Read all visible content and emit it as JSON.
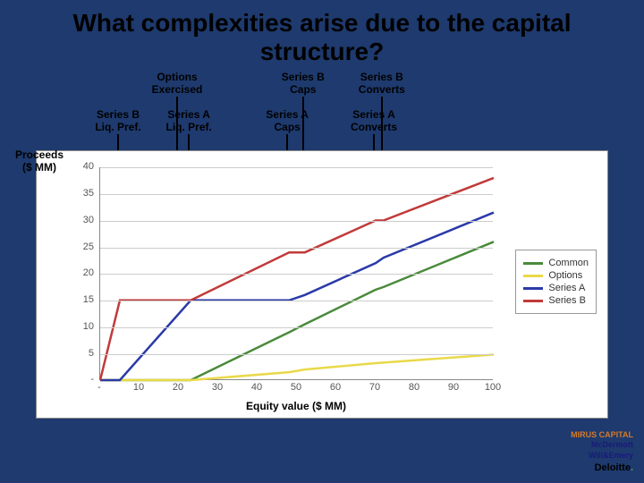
{
  "slide": {
    "background_color": "#1e3a6e",
    "title": "What complexities arise due to the capital structure?",
    "title_color": "#000000",
    "title_fontsize": 28
  },
  "annotations": {
    "fontsize": 12,
    "topRow": [
      {
        "label_l1": "Options",
        "label_l2": "Exercised",
        "x_value": 20
      },
      {
        "label_l1": "Series B",
        "label_l2": "Caps",
        "x_value": 52
      },
      {
        "label_l1": "Series B",
        "label_l2": "Converts",
        "x_value": 72
      }
    ],
    "bottomRow": [
      {
        "label_l1": "Series B",
        "label_l2": "Liq. Pref.",
        "x_value": 5
      },
      {
        "label_l1": "Series A",
        "label_l2": "Liq. Pref.",
        "x_value": 23
      },
      {
        "label_l1": "Series A",
        "label_l2": "Caps",
        "x_value": 48
      },
      {
        "label_l1": "Series A",
        "label_l2": "Converts",
        "x_value": 70
      }
    ]
  },
  "chart": {
    "type": "line",
    "yaxis_label_l1": "Proceeds",
    "yaxis_label_l2": "($ MM)",
    "yaxis_label_fontsize": 12,
    "xaxis_label": "Equity value ($ MM)",
    "xaxis_label_fontsize": 12,
    "tick_fontsize": 11,
    "xlim": [
      0,
      100
    ],
    "ylim": [
      0,
      40
    ],
    "xticks": [
      "-",
      "10",
      "20",
      "30",
      "40",
      "50",
      "60",
      "70",
      "80",
      "90",
      "100"
    ],
    "yticks": [
      "-",
      "5",
      "10",
      "15",
      "20",
      "25",
      "30",
      "35",
      "40"
    ],
    "grid_color": "#cccccc",
    "background_color": "#ffffff",
    "line_width": 2.5,
    "legend": {
      "fontsize": 11,
      "items": [
        {
          "label": "Common",
          "color": "#4a8a3a"
        },
        {
          "label": "Options",
          "color": "#e9d94a"
        },
        {
          "label": "Series A",
          "color": "#2a3aa8"
        },
        {
          "label": "Series B",
          "color": "#c23a3a"
        }
      ]
    },
    "series": {
      "Common": {
        "color": "#4a8a3a",
        "points": [
          [
            0,
            0
          ],
          [
            5,
            0
          ],
          [
            20,
            0
          ],
          [
            23,
            0
          ],
          [
            48,
            9
          ],
          [
            52,
            10.5
          ],
          [
            70,
            17
          ],
          [
            72,
            17.5
          ],
          [
            100,
            26
          ]
        ]
      },
      "Options": {
        "color": "#e9d94a",
        "points": [
          [
            0,
            0
          ],
          [
            20,
            0
          ],
          [
            23,
            0
          ],
          [
            48,
            1.5
          ],
          [
            52,
            2
          ],
          [
            70,
            3.2
          ],
          [
            72,
            3.3
          ],
          [
            100,
            4.8
          ]
        ]
      },
      "Series A": {
        "color": "#2a3aa8",
        "points": [
          [
            0,
            0
          ],
          [
            5,
            0
          ],
          [
            23,
            15
          ],
          [
            48,
            15
          ],
          [
            52,
            16
          ],
          [
            70,
            22
          ],
          [
            72,
            23
          ],
          [
            100,
            31.5
          ]
        ]
      },
      "Series B": {
        "color": "#c23a3a",
        "points": [
          [
            0,
            0
          ],
          [
            5,
            15
          ],
          [
            20,
            15
          ],
          [
            23,
            15
          ],
          [
            48,
            24
          ],
          [
            52,
            24
          ],
          [
            70,
            30
          ],
          [
            72,
            30
          ],
          [
            100,
            38
          ]
        ]
      }
    }
  },
  "logos": {
    "mirus": "MIRUS CAPITAL",
    "mirus_color": "#d47a2a",
    "mcdermott_l1": "McDermott",
    "mcdermott_l2": "Will&Emery",
    "mcdermott_color": "#1a1a7a",
    "deloitte": "Deloitte",
    "deloitte_color": "#000000",
    "deloitte_dot_color": "#64a646"
  }
}
